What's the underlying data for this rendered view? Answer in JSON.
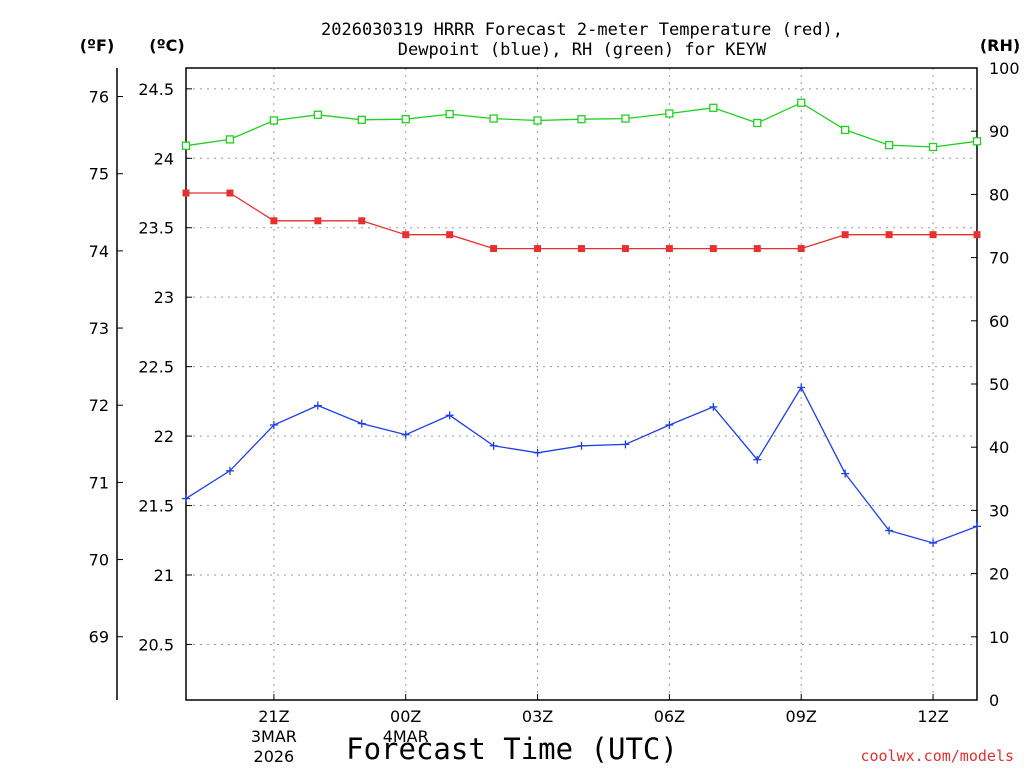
{
  "chart_data": {
    "type": "line",
    "title_lines": [
      "2026030319 HRRR Forecast 2-meter Temperature (red),",
      "Dewpoint (blue), RH (green) for KEYW"
    ],
    "xlabel": "Forecast Time (UTC)",
    "credit": "coolwx.com/models",
    "units": {
      "fahrenheit": "(ºF)",
      "celsius": "(ºC)",
      "rh": "(RH)"
    },
    "x_hours": [
      0,
      1,
      2,
      3,
      4,
      5,
      6,
      7,
      8,
      9,
      10,
      11,
      12,
      13,
      14,
      15,
      16,
      17,
      18
    ],
    "x_tick_positions": [
      2,
      5,
      8,
      11,
      14,
      17
    ],
    "x_tick_labels": [
      "21Z",
      "00Z",
      "03Z",
      "06Z",
      "09Z",
      "12Z"
    ],
    "x_date_labels": [
      {
        "at": 2,
        "lines": [
          "3MAR",
          "2026"
        ]
      },
      {
        "at": 5,
        "lines": [
          "4MAR"
        ]
      }
    ],
    "celsius_axis": {
      "range": [
        20.1,
        24.65
      ],
      "ticks": [
        "20.5",
        "21",
        "21.5",
        "22",
        "22.5",
        "23",
        "23.5",
        "24",
        "24.5"
      ]
    },
    "fahrenheit_axis": {
      "ticks": [
        "69",
        "70",
        "71",
        "72",
        "73",
        "74",
        "75",
        "76"
      ]
    },
    "rh_axis": {
      "range": [
        0,
        100
      ],
      "ticks": [
        "0",
        "10",
        "20",
        "30",
        "40",
        "50",
        "60",
        "70",
        "80",
        "90",
        "100"
      ]
    },
    "series": [
      {
        "name": "Temperature",
        "color": "#e83030",
        "marker": "filled-square",
        "axis": "celsius",
        "values": [
          23.75,
          23.75,
          23.55,
          23.55,
          23.55,
          23.45,
          23.45,
          23.35,
          23.35,
          23.35,
          23.35,
          23.35,
          23.35,
          23.35,
          23.35,
          23.45,
          23.45,
          23.45,
          23.45
        ]
      },
      {
        "name": "Dewpoint",
        "color": "#2040e0",
        "marker": "plus",
        "axis": "celsius",
        "values": [
          21.55,
          21.75,
          22.08,
          22.22,
          22.09,
          22.01,
          22.15,
          21.93,
          21.88,
          21.93,
          21.94,
          22.08,
          22.21,
          21.83,
          22.35,
          21.73,
          21.32,
          21.23,
          21.35
        ]
      },
      {
        "name": "RH",
        "color": "#20d020",
        "marker": "open-square",
        "axis": "rh",
        "values": [
          87.7,
          88.7,
          91.7,
          92.6,
          91.8,
          91.9,
          92.7,
          92.0,
          91.7,
          91.9,
          92.0,
          92.8,
          93.7,
          91.3,
          94.5,
          90.2,
          87.8,
          87.5,
          88.4
        ]
      }
    ]
  }
}
